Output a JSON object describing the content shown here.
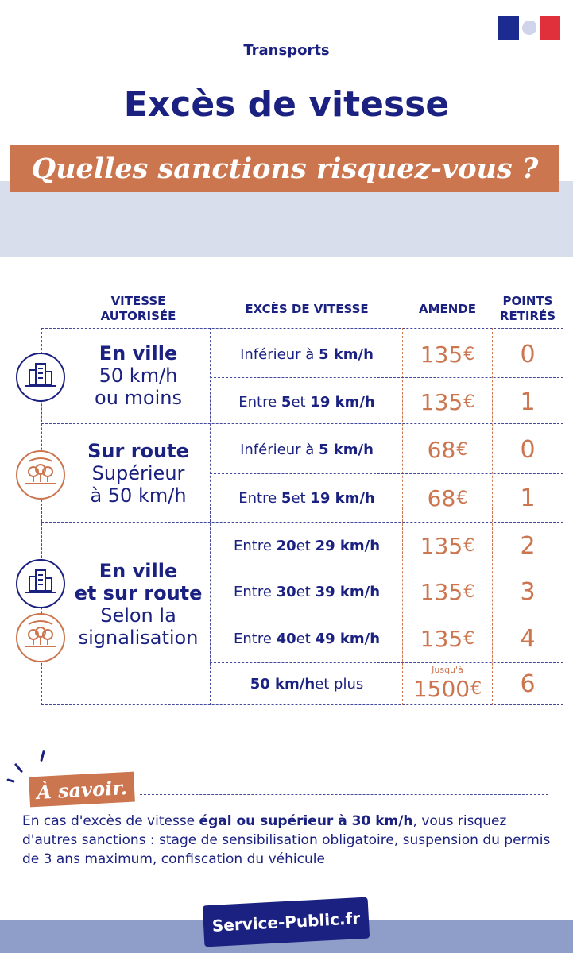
{
  "header": {
    "category": "Transports",
    "title": "Excès de vitesse",
    "subtitle": "Quelles sanctions risquez-vous ?"
  },
  "table": {
    "headers": {
      "speed_line1": "VITESSE",
      "speed_line2": "AUTORISÉE",
      "excess": "EXCÈS DE VITESSE",
      "fine": "AMENDE",
      "points_line1": "POINTS",
      "points_line2": "RETIRÉS"
    },
    "categories": [
      {
        "title": "En ville",
        "line2": "50 km/h",
        "line3": "ou moins",
        "icons": [
          "city-icon"
        ]
      },
      {
        "title": "Sur route",
        "line2": "Supérieur",
        "line3": "à 50 km/h",
        "icons": [
          "trees-icon"
        ]
      },
      {
        "title_line1": "En ville",
        "title_line2": "et sur route",
        "line2": "Selon la",
        "line3": "signalisation",
        "icons": [
          "city-icon",
          "trees-icon"
        ]
      }
    ],
    "rows": [
      {
        "exces_pre": "Inférieur à ",
        "exces_b1": "5 km/h",
        "exces_mid": "",
        "exces_b2": "",
        "amende": "135",
        "currency": "€",
        "points": "0"
      },
      {
        "exces_pre": "Entre ",
        "exces_b1": "5",
        "exces_mid": " et ",
        "exces_b2": "19 km/h",
        "amende": "135",
        "currency": "€",
        "points": "1"
      },
      {
        "exces_pre": "Inférieur à ",
        "exces_b1": "5 km/h",
        "exces_mid": "",
        "exces_b2": "",
        "amende": "68",
        "currency": "€",
        "points": "0"
      },
      {
        "exces_pre": "Entre ",
        "exces_b1": "5",
        "exces_mid": " et ",
        "exces_b2": "19 km/h",
        "amende": "68",
        "currency": "€",
        "points": "1"
      },
      {
        "exces_pre": "Entre ",
        "exces_b1": "20",
        "exces_mid": " et ",
        "exces_b2": "29 km/h",
        "amende": "135",
        "currency": "€",
        "points": "2"
      },
      {
        "exces_pre": "Entre ",
        "exces_b1": "30",
        "exces_mid": " et ",
        "exces_b2": "39 km/h",
        "amende": "135",
        "currency": "€",
        "points": "3"
      },
      {
        "exces_pre": "Entre ",
        "exces_b1": "40",
        "exces_mid": " et ",
        "exces_b2": "49 km/h",
        "amende": "135",
        "currency": "€",
        "points": "4"
      },
      {
        "exces_pre": "",
        "exces_b1": "50 km/h",
        "exces_mid": " et plus",
        "exces_b2": "",
        "amende_prefix": "Jusqu'à",
        "amende": "1500",
        "currency": "€",
        "points": "6"
      }
    ]
  },
  "savoir": {
    "tag": "À savoir.",
    "text_pre": "En cas d'excès de vitesse ",
    "text_bold": "égal ou supérieur à 30 km/h",
    "text_post": ", vous risquez d'autres sanctions : stage de sensibilisation obligatoire, suspension du permis de 3 ans maximum, confiscation du véhicule"
  },
  "footer": {
    "brand": "Service-Public.fr"
  },
  "colors": {
    "navy": "#1b2180",
    "orange": "#cc7650",
    "band": "#d9deec",
    "footer_band": "#8f9ec8"
  }
}
